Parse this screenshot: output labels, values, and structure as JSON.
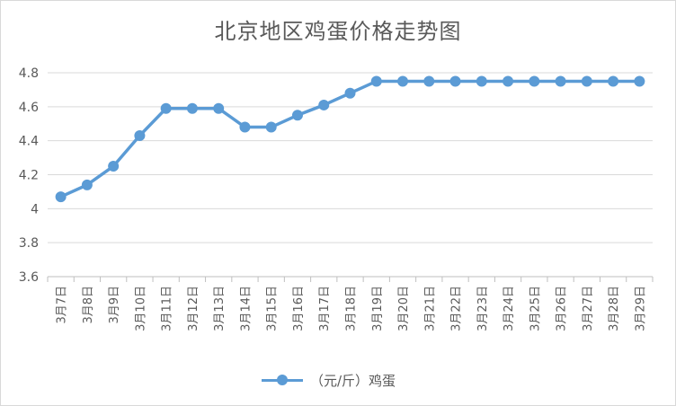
{
  "chart_data": {
    "type": "line",
    "title": "北京地区鸡蛋价格走势图",
    "categories": [
      "3月7日",
      "3月8日",
      "3月9日",
      "3月10日",
      "3月11日",
      "3月12日",
      "3月13日",
      "3月14日",
      "3月15日",
      "3月16日",
      "3月17日",
      "3月18日",
      "3月19日",
      "3月20日",
      "3月21日",
      "3月22日",
      "3月23日",
      "3月24日",
      "3月25日",
      "3月26日",
      "3月27日",
      "3月28日",
      "3月29日"
    ],
    "series": [
      {
        "name": "（元/斤）鸡蛋",
        "values": [
          4.07,
          4.14,
          4.25,
          4.43,
          4.59,
          4.59,
          4.59,
          4.48,
          4.48,
          4.55,
          4.61,
          4.68,
          4.75,
          4.75,
          4.75,
          4.75,
          4.75,
          4.75,
          4.75,
          4.75,
          4.75,
          4.75,
          4.75
        ]
      }
    ],
    "yticks": [
      "3.6",
      "3.8",
      "4",
      "4.2",
      "4.4",
      "4.6",
      "4.8"
    ],
    "ylim": [
      3.6,
      4.8
    ],
    "grid": true,
    "legend": "bottom",
    "color": "#5b9bd5"
  }
}
